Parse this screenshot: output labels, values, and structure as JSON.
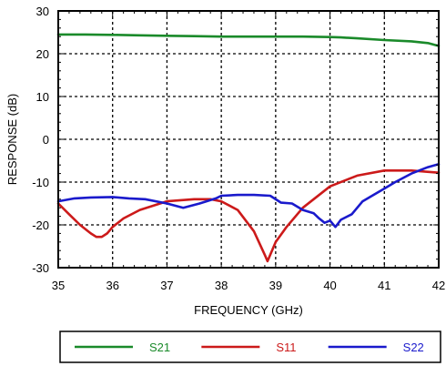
{
  "chart_data": {
    "type": "line",
    "xlabel": "FREQUENCY (GHz)",
    "ylabel": "RESPONSE (dB)",
    "xlim": [
      35,
      42
    ],
    "ylim": [
      -30,
      30
    ],
    "xticks": [
      35,
      36,
      37,
      38,
      39,
      40,
      41,
      42
    ],
    "yticks": [
      30,
      20,
      10,
      0,
      -10,
      -20,
      -30
    ],
    "grid": true,
    "grid_style": "dotted",
    "legend_position": "bottom",
    "series": [
      {
        "name": "S21",
        "color": "#1a8a2a",
        "x": [
          35,
          35.5,
          36,
          36.5,
          37,
          37.5,
          38,
          38.5,
          39,
          39.5,
          40,
          40.2,
          40.5,
          41,
          41.5,
          41.8,
          42
        ],
        "y": [
          24.5,
          24.5,
          24.4,
          24.3,
          24.2,
          24.1,
          24.0,
          24.0,
          24.0,
          24.0,
          23.9,
          23.8,
          23.6,
          23.2,
          22.9,
          22.5,
          21.8
        ]
      },
      {
        "name": "S11",
        "color": "#cc1a1a",
        "x": [
          35,
          35.2,
          35.4,
          35.6,
          35.7,
          35.8,
          35.9,
          36,
          36.2,
          36.5,
          37,
          37.5,
          37.8,
          38,
          38.3,
          38.6,
          38.8,
          38.85,
          38.9,
          39,
          39.2,
          39.5,
          40,
          40.5,
          41,
          41.5,
          42
        ],
        "y": [
          -15,
          -17.5,
          -20,
          -22,
          -22.8,
          -22.8,
          -22,
          -20.5,
          -18.5,
          -16.5,
          -14.5,
          -14,
          -14,
          -14.5,
          -16.5,
          -21.5,
          -27,
          -28.5,
          -27,
          -24,
          -20.5,
          -16,
          -11,
          -8.5,
          -7.3,
          -7.3,
          -7.8
        ]
      },
      {
        "name": "S22",
        "color": "#1a1acc",
        "x": [
          35,
          35.3,
          35.6,
          36,
          36.3,
          36.6,
          37,
          37.3,
          37.6,
          37.9,
          38,
          38.3,
          38.6,
          38.9,
          39.1,
          39.3,
          39.5,
          39.7,
          39.8,
          39.9,
          40,
          40.1,
          40.2,
          40.4,
          40.6,
          40.8,
          41,
          41.2,
          41.5,
          41.8,
          42
        ],
        "y": [
          -14.5,
          -13.8,
          -13.6,
          -13.5,
          -13.8,
          -14,
          -15,
          -16,
          -15,
          -13.8,
          -13.2,
          -13,
          -13,
          -13.2,
          -14.8,
          -15,
          -16.5,
          -17.3,
          -18.5,
          -19.5,
          -19,
          -20.5,
          -18.8,
          -17.5,
          -14.5,
          -13,
          -11.5,
          -10,
          -8,
          -6.5,
          -5.8
        ]
      }
    ]
  }
}
